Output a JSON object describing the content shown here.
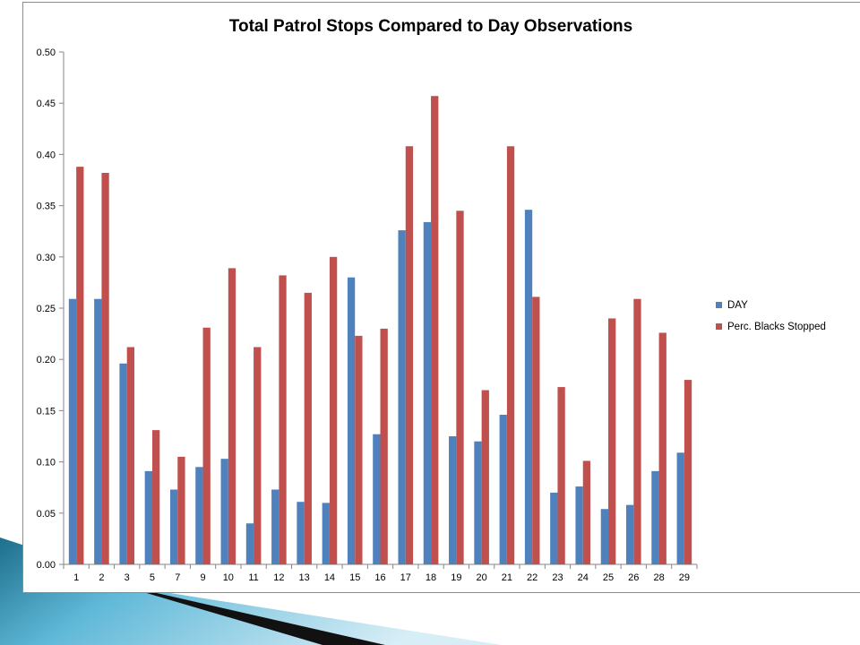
{
  "chart_data": {
    "type": "bar",
    "title": "Total Patrol Stops Compared to Day Observations",
    "xlabel": "",
    "ylabel": "",
    "categories": [
      "1",
      "2",
      "3",
      "5",
      "7",
      "9",
      "10",
      "11",
      "12",
      "13",
      "14",
      "15",
      "16",
      "17",
      "18",
      "19",
      "20",
      "21",
      "22",
      "23",
      "24",
      "25",
      "26",
      "28",
      "29"
    ],
    "ylim": [
      0,
      0.5
    ],
    "yticks": [
      "0.00",
      "0.05",
      "0.10",
      "0.15",
      "0.20",
      "0.25",
      "0.30",
      "0.35",
      "0.40",
      "0.45",
      "0.50"
    ],
    "grid": false,
    "legend_position": "right",
    "series": [
      {
        "name": "DAY",
        "color": "#4f81bd",
        "values": [
          0.259,
          0.259,
          0.196,
          0.091,
          0.073,
          0.095,
          0.103,
          0.04,
          0.073,
          0.061,
          0.06,
          0.28,
          0.127,
          0.326,
          0.334,
          0.125,
          0.12,
          0.146,
          0.346,
          0.07,
          0.076,
          0.054,
          0.058,
          0.091,
          0.109
        ]
      },
      {
        "name": "Perc. Blacks Stopped",
        "color": "#c0504d",
        "values": [
          0.388,
          0.382,
          0.212,
          0.131,
          0.105,
          0.231,
          0.289,
          0.212,
          0.282,
          0.265,
          0.3,
          0.223,
          0.23,
          0.408,
          0.457,
          0.345,
          0.17,
          0.408,
          0.261,
          0.173,
          0.101,
          0.24,
          0.259,
          0.226,
          0.18
        ]
      }
    ]
  }
}
